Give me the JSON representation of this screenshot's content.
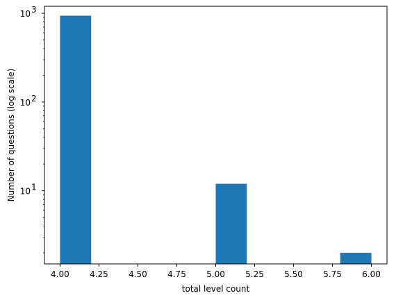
{
  "chart_data": {
    "type": "bar",
    "subtype": "histogram",
    "bins": [
      {
        "x0": 4.0,
        "x1": 4.2,
        "count": 940
      },
      {
        "x0": 4.2,
        "x1": 4.4,
        "count": 0
      },
      {
        "x0": 4.4,
        "x1": 4.6,
        "count": 0
      },
      {
        "x0": 4.6,
        "x1": 4.8,
        "count": 0
      },
      {
        "x0": 4.8,
        "x1": 5.0,
        "count": 0
      },
      {
        "x0": 5.0,
        "x1": 5.2,
        "count": 12
      },
      {
        "x0": 5.2,
        "x1": 5.4,
        "count": 0
      },
      {
        "x0": 5.4,
        "x1": 5.6,
        "count": 0
      },
      {
        "x0": 5.6,
        "x1": 5.8,
        "count": 0
      },
      {
        "x0": 5.8,
        "x1": 6.0,
        "count": 2
      }
    ],
    "xlabel": "total level count",
    "ylabel": "Number of questions (log scale)",
    "xlim": [
      3.9,
      6.1
    ],
    "ylim": [
      1.5,
      1200
    ],
    "yscale": "log",
    "xticks": [
      "4.00",
      "4.25",
      "4.50",
      "4.75",
      "5.00",
      "5.25",
      "5.50",
      "5.75",
      "6.00"
    ],
    "yticks": [
      {
        "base": "10",
        "exp": "1",
        "value": 10
      },
      {
        "base": "10",
        "exp": "2",
        "value": 100
      },
      {
        "base": "10",
        "exp": "3",
        "value": 1000
      }
    ],
    "grid": false,
    "bar_color": "#1f77b4"
  }
}
